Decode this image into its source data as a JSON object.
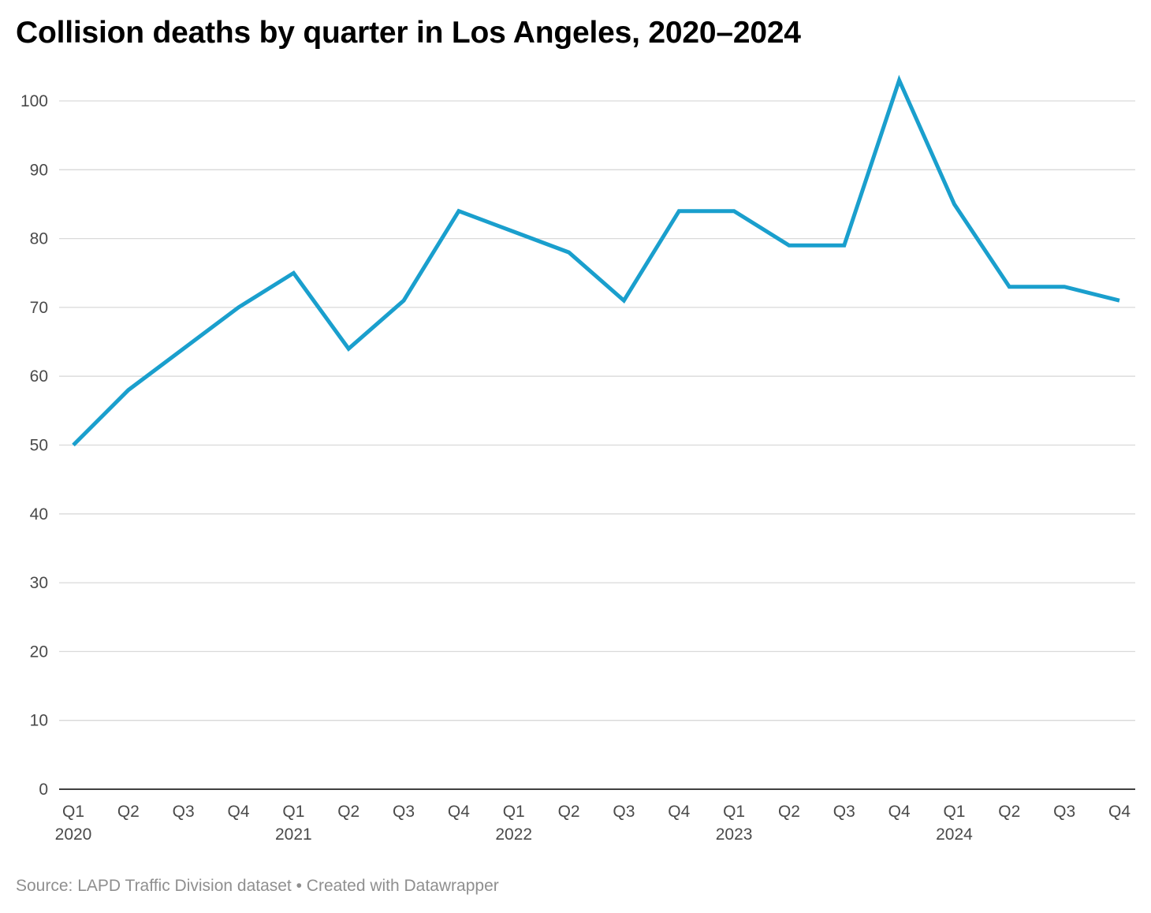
{
  "chart_data": {
    "type": "line",
    "title": "Collision deaths by quarter in Los Angeles, 2020–2024",
    "xlabel": "",
    "ylabel": "",
    "categories": [
      "Q1 2020",
      "Q2 2020",
      "Q3 2020",
      "Q4 2020",
      "Q1 2021",
      "Q2 2021",
      "Q3 2021",
      "Q4 2021",
      "Q1 2022",
      "Q2 2022",
      "Q3 2022",
      "Q4 2022",
      "Q1 2023",
      "Q2 2023",
      "Q3 2023",
      "Q4 2023",
      "Q1 2024",
      "Q2 2024",
      "Q3 2024",
      "Q4 2024"
    ],
    "x_tick_quarters": [
      "Q1",
      "Q2",
      "Q3",
      "Q4",
      "Q1",
      "Q2",
      "Q3",
      "Q4",
      "Q1",
      "Q2",
      "Q3",
      "Q4",
      "Q1",
      "Q2",
      "Q3",
      "Q4",
      "Q1",
      "Q2",
      "Q3",
      "Q4"
    ],
    "x_tick_years": [
      "2020",
      "",
      "",
      "",
      "2021",
      "",
      "",
      "",
      "2022",
      "",
      "",
      "",
      "2023",
      "",
      "",
      "",
      "2024",
      "",
      "",
      ""
    ],
    "series": [
      {
        "values": [
          50,
          58,
          64,
          70,
          75,
          64,
          71,
          84,
          81,
          78,
          71,
          84,
          84,
          79,
          79,
          103,
          85,
          73,
          73,
          71
        ],
        "color": "#1a9fcd"
      }
    ],
    "ylim": [
      0,
      100
    ],
    "y_ticks": [
      "0",
      "10",
      "20",
      "30",
      "40",
      "50",
      "60",
      "70",
      "80",
      "90",
      "100"
    ],
    "grid": true,
    "legend": "none"
  },
  "footer": {
    "text": "Source: LAPD Traffic Division dataset • Created with Datawrapper"
  },
  "colors": {
    "line": "#1a9fcd",
    "grid": "#d9d9d9",
    "axis": "#000000",
    "tick_text": "#4a4a4a",
    "footer_text": "#8f8f8f"
  }
}
